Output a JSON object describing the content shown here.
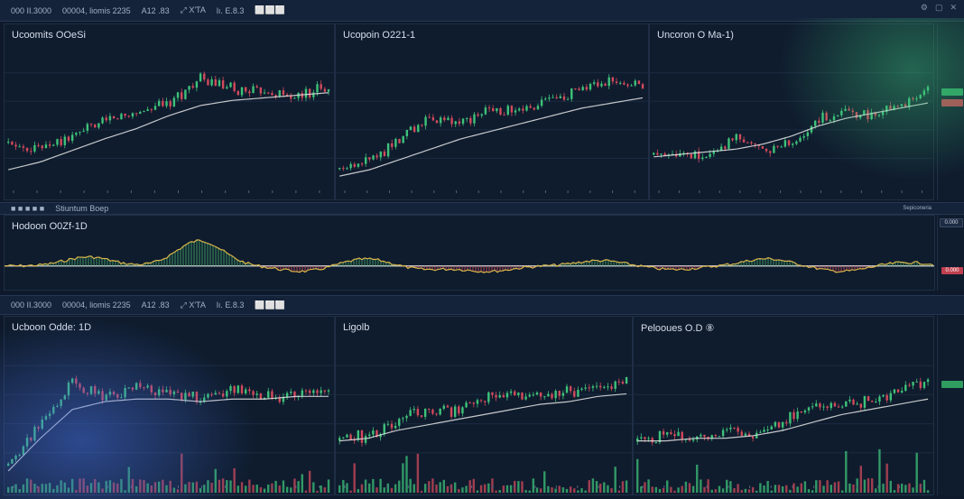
{
  "top_toolbar": {
    "symbol": "000 II.3000",
    "items": [
      "00004, liomis 2235",
      "A12 .83",
      "⤢ X'TA",
      "lı. E.8.3",
      "⬜⬜⬜"
    ],
    "right_icons": [
      "gear-icon",
      "maximize-icon",
      "close-icon"
    ]
  },
  "row1": [
    {
      "title": "Ucoomits OOeSi"
    },
    {
      "title": "Ucopoin O221-1"
    },
    {
      "title": "Uncoron O Ma-1)"
    }
  ],
  "oscillator": {
    "toolbar_label": "Stiuntum Boep",
    "right_label": "Sepiconeria",
    "title": "Hodoon O0Zf-1D",
    "tags": [
      "0.000",
      "0.000"
    ]
  },
  "bottom_toolbar": {
    "symbol": "000 II.3000",
    "items": [
      "00004, liomis 2235",
      "A12 .83",
      "⤢ X'TA",
      "lı. E.8.3",
      "⬜⬜⬜"
    ]
  },
  "row2": [
    {
      "title": "Ucboon Odde: 1D"
    },
    {
      "title": "Ligolb"
    },
    {
      "title": "Pelooues O.D  ⑧"
    }
  ],
  "colors": {
    "up": "#3ec27a",
    "down": "#d24a5c",
    "ma": "#e6e6e6",
    "osc": "#d9b54a"
  },
  "chart_data": [
    {
      "type": "candlestick",
      "title": "Ucoomits OOeSi",
      "trend": [
        0.3,
        0.28,
        0.35,
        0.48,
        0.55,
        0.62,
        0.8,
        0.72,
        0.7,
        0.66,
        0.76
      ],
      "ma": [
        0.1,
        0.16,
        0.25,
        0.34,
        0.42,
        0.52,
        0.6,
        0.64,
        0.66,
        0.68,
        0.7
      ]
    },
    {
      "type": "candlestick",
      "title": "Ucopoin O221-1",
      "trend": [
        0.1,
        0.18,
        0.34,
        0.5,
        0.46,
        0.58,
        0.54,
        0.66,
        0.72,
        0.78,
        0.76
      ],
      "ma": [
        0.05,
        0.1,
        0.18,
        0.26,
        0.34,
        0.4,
        0.46,
        0.52,
        0.58,
        0.62,
        0.66
      ]
    },
    {
      "type": "candlestick",
      "title": "Uncoron O Ma-1)",
      "trend": [
        0.22,
        0.24,
        0.2,
        0.38,
        0.24,
        0.3,
        0.48,
        0.56,
        0.52,
        0.6,
        0.74
      ],
      "ma": [
        0.2,
        0.22,
        0.24,
        0.26,
        0.3,
        0.36,
        0.44,
        0.5,
        0.54,
        0.58,
        0.62
      ]
    },
    {
      "type": "candlestick",
      "title": "Ucboon Odde: 1D",
      "trend": [
        0.1,
        0.4,
        0.72,
        0.62,
        0.7,
        0.64,
        0.6,
        0.68,
        0.62,
        0.64,
        0.66
      ],
      "ma": [
        0.05,
        0.3,
        0.52,
        0.58,
        0.6,
        0.6,
        0.58,
        0.6,
        0.6,
        0.62,
        0.62
      ],
      "volume": true
    },
    {
      "type": "candlestick",
      "title": "Ligolb",
      "trend": [
        0.3,
        0.32,
        0.44,
        0.52,
        0.5,
        0.6,
        0.64,
        0.62,
        0.66,
        0.7,
        0.72
      ],
      "ma": [
        0.28,
        0.3,
        0.36,
        0.4,
        0.44,
        0.48,
        0.52,
        0.56,
        0.58,
        0.62,
        0.64
      ],
      "volume": true
    },
    {
      "type": "candlestick",
      "title": "Pelooues O.D  ⑧",
      "trend": [
        0.3,
        0.32,
        0.3,
        0.34,
        0.34,
        0.44,
        0.54,
        0.56,
        0.58,
        0.66,
        0.74
      ],
      "ma": [
        0.28,
        0.28,
        0.3,
        0.3,
        0.32,
        0.36,
        0.42,
        0.48,
        0.52,
        0.56,
        0.6
      ],
      "volume": true
    }
  ]
}
